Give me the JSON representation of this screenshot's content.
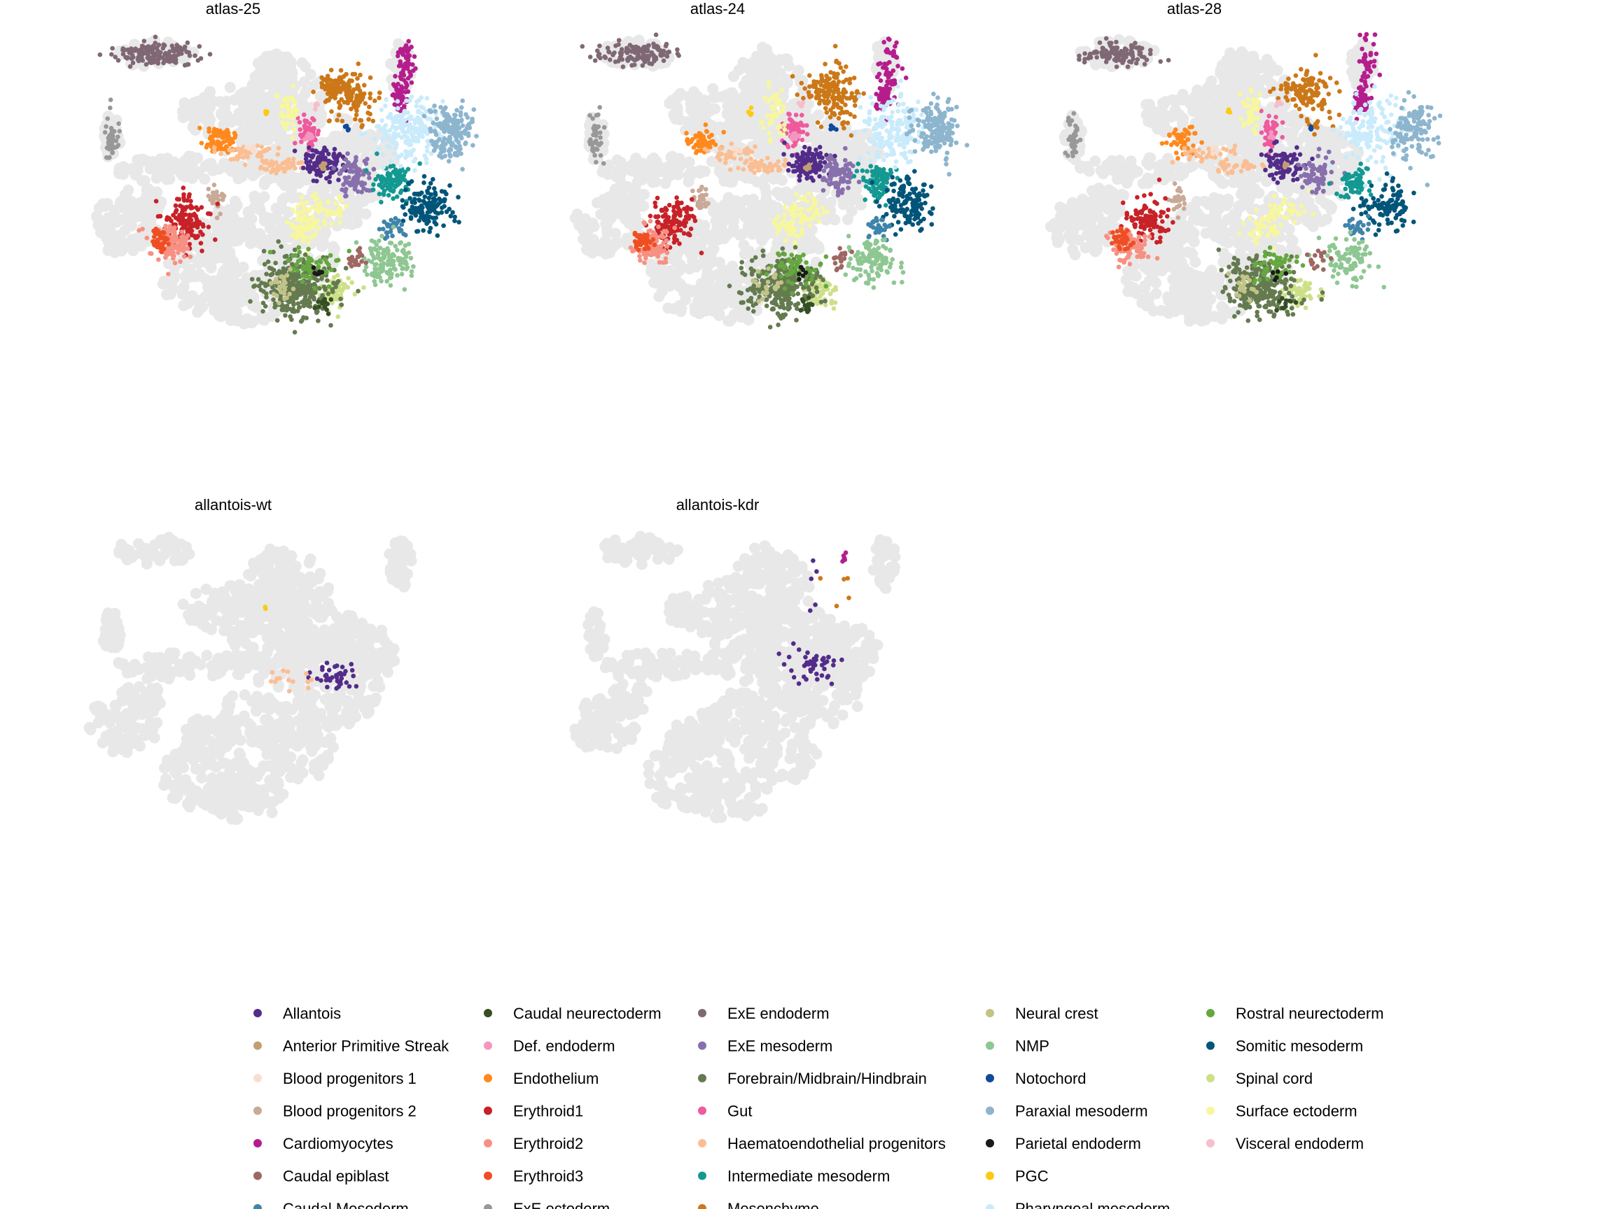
{
  "chart_data": {
    "type": "scatter",
    "panels": [
      "atlas-25",
      "atlas-24",
      "atlas-28",
      "allantois-wt",
      "allantois-kdr"
    ],
    "background_color": "#e8e8e8",
    "axes": "none",
    "grid": false,
    "legend_position": "bottom",
    "cell_types": [
      {
        "name": "Allantois",
        "color": "#532C8A"
      },
      {
        "name": "Anterior Primitive Streak",
        "color": "#c19f70"
      },
      {
        "name": "Blood progenitors 1",
        "color": "#f9decf"
      },
      {
        "name": "Blood progenitors 2",
        "color": "#c9a997"
      },
      {
        "name": "Cardiomyocytes",
        "color": "#B51D8D"
      },
      {
        "name": "Caudal epiblast",
        "color": "#9e6762"
      },
      {
        "name": "Caudal Mesoderm",
        "color": "#3F84AA"
      },
      {
        "name": "Caudal neurectoderm",
        "color": "#354E23"
      },
      {
        "name": "Def. endoderm",
        "color": "#F397C0"
      },
      {
        "name": "Endothelium",
        "color": "#ff891c"
      },
      {
        "name": "Erythroid1",
        "color": "#C72228"
      },
      {
        "name": "Erythroid2",
        "color": "#f79083"
      },
      {
        "name": "Erythroid3",
        "color": "#EF4E22"
      },
      {
        "name": "ExE ectoderm",
        "color": "#989898"
      },
      {
        "name": "ExE endoderm",
        "color": "#7F6874"
      },
      {
        "name": "ExE mesoderm",
        "color": "#8870ad"
      },
      {
        "name": "Forebrain/Midbrain/Hindbrain",
        "color": "#647a4f"
      },
      {
        "name": "Gut",
        "color": "#EF5A9D"
      },
      {
        "name": "Haematoendothelial progenitors",
        "color": "#FBBE92"
      },
      {
        "name": "Intermediate mesoderm",
        "color": "#139992"
      },
      {
        "name": "Mesenchyme",
        "color": "#cc7818"
      },
      {
        "name": "Neural crest",
        "color": "#C3C388"
      },
      {
        "name": "NMP",
        "color": "#8EC792"
      },
      {
        "name": "Notochord",
        "color": "#0F4A9C"
      },
      {
        "name": "Paraxial mesoderm",
        "color": "#8DB5CE"
      },
      {
        "name": "Parietal endoderm",
        "color": "#1A1A1A"
      },
      {
        "name": "PGC",
        "color": "#FACB12"
      },
      {
        "name": "Pharyngeal mesoderm",
        "color": "#C9EBFB"
      },
      {
        "name": "Rostral neurectoderm",
        "color": "#65A83E"
      },
      {
        "name": "Somitic mesoderm",
        "color": "#005579"
      },
      {
        "name": "Spinal cord",
        "color": "#CDE088"
      },
      {
        "name": "Surface ectoderm",
        "color": "#f7f79e"
      },
      {
        "name": "Visceral endoderm",
        "color": "#F6BFCB"
      }
    ]
  }
}
